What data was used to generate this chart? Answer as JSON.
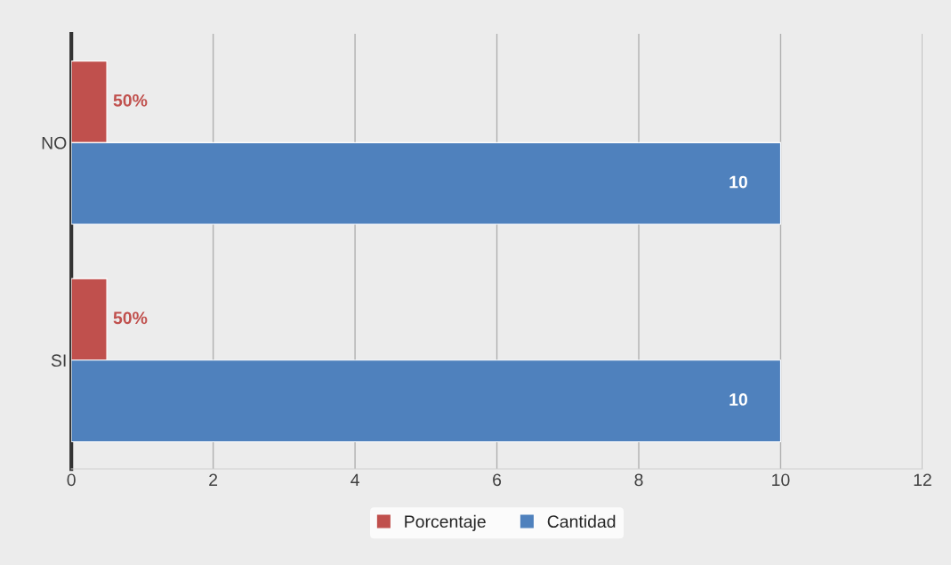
{
  "chart_data": {
    "type": "bar",
    "orientation": "horizontal",
    "categories": [
      "NO",
      "SI"
    ],
    "series": [
      {
        "name": "Porcentaje",
        "color": "#c0504d",
        "values": [
          0.5,
          0.5
        ],
        "value_labels": [
          "50%",
          "50%"
        ]
      },
      {
        "name": "Cantidad",
        "color": "#4f81bd",
        "values": [
          10,
          10
        ],
        "value_labels": [
          "10",
          "10"
        ]
      }
    ],
    "xlim": [
      0,
      12
    ],
    "xticks": [
      0,
      2,
      4,
      6,
      8,
      10,
      12
    ],
    "grid": "x",
    "legend": "bottom"
  }
}
